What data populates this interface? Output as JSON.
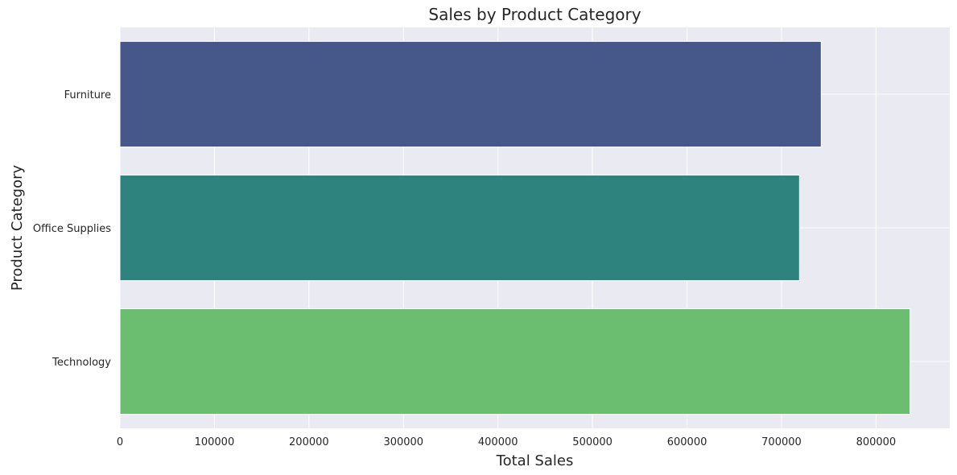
{
  "chart_data": {
    "type": "bar",
    "orientation": "horizontal",
    "title": "Sales by Product Category",
    "xlabel": "Total Sales",
    "ylabel": "Product Category",
    "categories": [
      "Furniture",
      "Office Supplies",
      "Technology"
    ],
    "values": [
      742000,
      719000,
      836000
    ],
    "colors": [
      "#46588a",
      "#2e837e",
      "#6bbd6f"
    ],
    "xlim": [
      0,
      878000
    ],
    "xticks": [
      0,
      100000,
      200000,
      300000,
      400000,
      500000,
      600000,
      700000,
      800000
    ],
    "grid": true,
    "legend": "none"
  }
}
